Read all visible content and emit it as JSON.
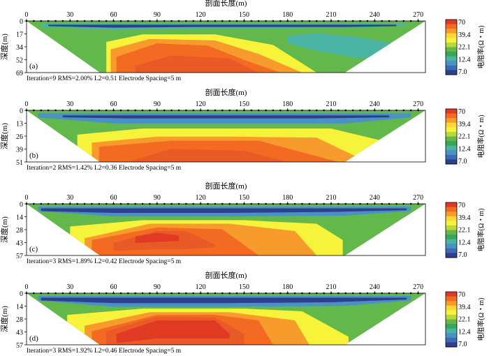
{
  "chart_data": [
    {
      "type": "heatmap",
      "label": "(a)",
      "xlabel": "剖面长度(m)",
      "ylabel": "深度(m)",
      "x_ticks": [
        0,
        30,
        60,
        90,
        120,
        150,
        180,
        210,
        240,
        270
      ],
      "xlim": [
        0,
        275
      ],
      "y_ticks": [
        "0",
        "17",
        "34",
        "52",
        "69"
      ],
      "ylim": [
        0,
        69
      ],
      "stats": "Iteration=9  RMS=2.00%  L2=0.51  Electrode Spacing=5 m",
      "layers": [
        {
          "level": "22.1",
          "x": [
            0,
            12,
            40,
            80,
            140,
            200,
            250,
            275
          ],
          "ytop": [
            0,
            0,
            0,
            0,
            0,
            0,
            0,
            0
          ],
          "ybot": [
            5,
            25,
            69,
            69,
            69,
            69,
            25,
            5
          ]
        },
        {
          "level": "12.4",
          "x": [
            10,
            60,
            120,
            180,
            240,
            262
          ],
          "ytop": [
            4,
            3,
            3,
            3,
            3,
            4
          ],
          "ybot": [
            8,
            12,
            10,
            10,
            8,
            6
          ]
        },
        {
          "level": "7.0",
          "x": [
            15,
            60,
            120,
            180,
            220,
            255
          ],
          "ytop": [
            5,
            5,
            5,
            5,
            5,
            5
          ],
          "ybot": [
            7,
            9,
            8,
            8,
            8,
            7
          ]
        },
        {
          "level": "12.4",
          "x": [
            180,
            200,
            230,
            252
          ],
          "ytop": [
            20,
            16,
            22,
            30
          ],
          "ybot": [
            30,
            40,
            50,
            44
          ]
        },
        {
          "level": "26.5",
          "x": [
            55,
            80,
            130,
            170,
            200
          ],
          "ytop": [
            28,
            18,
            18,
            32,
            69
          ],
          "ybot": [
            69,
            69,
            69,
            69,
            69
          ]
        },
        {
          "level": "39.4",
          "x": [
            58,
            85,
            130,
            160,
            190
          ],
          "ytop": [
            38,
            24,
            26,
            44,
            69
          ],
          "ybot": [
            69,
            69,
            69,
            69,
            69
          ]
        },
        {
          "level": "47.0",
          "x": [
            62,
            90,
            125,
            150,
            175
          ],
          "ytop": [
            48,
            30,
            33,
            52,
            69
          ],
          "ybot": [
            69,
            69,
            69,
            69,
            69
          ]
        },
        {
          "level": "56.0",
          "x": [
            75,
            100,
            140,
            160
          ],
          "ytop": [
            60,
            46,
            50,
            69
          ],
          "ybot": [
            69,
            69,
            69,
            69
          ]
        }
      ]
    },
    {
      "type": "heatmap",
      "label": "(b)",
      "xlabel": "剖面长度(m)",
      "ylabel": "深度(m)",
      "x_ticks": [
        0,
        30,
        60,
        90,
        120,
        150,
        180,
        210,
        240,
        270
      ],
      "xlim": [
        0,
        275
      ],
      "y_ticks": [
        "0",
        "13",
        "26",
        "39",
        "51"
      ],
      "ylim": [
        0,
        51
      ],
      "stats": "Iteration=2  RMS=1.42%  L2=0.36  Electrode Spacing=5 m",
      "layers": [
        {
          "level": "22.1",
          "x": [
            0,
            12,
            40,
            80,
            140,
            200,
            250,
            275
          ],
          "ytop": [
            0,
            0,
            0,
            0,
            0,
            0,
            0,
            0
          ],
          "ybot": [
            5,
            20,
            51,
            51,
            51,
            51,
            20,
            5
          ]
        },
        {
          "level": "15.0",
          "x": [
            8,
            60,
            140,
            220,
            265
          ],
          "ytop": [
            3,
            3,
            3,
            3,
            3
          ],
          "ybot": [
            7,
            13,
            13,
            13,
            7
          ]
        },
        {
          "level": "7.0",
          "x": [
            25,
            70,
            140,
            200,
            250
          ],
          "ytop": [
            5,
            5,
            5,
            5,
            5
          ],
          "ybot": [
            7,
            8,
            8,
            8,
            7
          ]
        },
        {
          "level": "26.5",
          "x": [
            35,
            80,
            140,
            210,
            245
          ],
          "ytop": [
            24,
            18,
            18,
            18,
            30
          ],
          "ybot": [
            51,
            51,
            51,
            51,
            51
          ]
        },
        {
          "level": "39.4",
          "x": [
            45,
            90,
            140,
            200,
            235
          ],
          "ytop": [
            32,
            26,
            26,
            27,
            51
          ],
          "ybot": [
            51,
            51,
            51,
            51,
            51
          ]
        },
        {
          "level": "47.0",
          "x": [
            50,
            100,
            160,
            215
          ],
          "ytop": [
            36,
            30,
            30,
            51
          ],
          "ybot": [
            51,
            51,
            51,
            51
          ]
        },
        {
          "level": "56.0",
          "x": [
            70,
            100,
            150,
            180
          ],
          "ytop": [
            51,
            38,
            40,
            51
          ],
          "ybot": [
            51,
            51,
            51,
            51
          ]
        }
      ]
    },
    {
      "type": "heatmap",
      "label": "(c)",
      "xlabel": "剖面长度(m)",
      "ylabel": "深度(m)",
      "x_ticks": [
        0,
        30,
        60,
        90,
        120,
        150,
        180,
        210,
        240,
        270
      ],
      "xlim": [
        0,
        275
      ],
      "y_ticks": [
        "0",
        "14",
        "28",
        "43",
        "57"
      ],
      "ylim": [
        0,
        57
      ],
      "stats": "Iteration=3  RMS=1.89%  L2=0.42  Electrode Spacing=5 m",
      "layers": [
        {
          "level": "22.1",
          "x": [
            0,
            12,
            40,
            80,
            140,
            200,
            250,
            275
          ],
          "ytop": [
            0,
            0,
            0,
            0,
            0,
            0,
            0,
            0
          ],
          "ybot": [
            5,
            22,
            57,
            57,
            57,
            57,
            22,
            5
          ]
        },
        {
          "level": "15.0",
          "x": [
            8,
            60,
            140,
            220,
            265
          ],
          "ytop": [
            3,
            3,
            3,
            3,
            3
          ],
          "ybot": [
            8,
            14,
            14,
            13,
            8
          ]
        },
        {
          "level": "7.0",
          "x": [
            10,
            60,
            140,
            210,
            262
          ],
          "ytop": [
            5,
            5,
            5,
            5,
            5
          ],
          "ybot": [
            8,
            10,
            10,
            9,
            7
          ]
        },
        {
          "level": "26.5",
          "x": [
            30,
            80,
            150,
            200,
            218
          ],
          "ytop": [
            25,
            18,
            18,
            22,
            40
          ],
          "ybot": [
            57,
            57,
            57,
            57,
            57
          ]
        },
        {
          "level": "39.4",
          "x": [
            40,
            85,
            140,
            185,
            200
          ],
          "ytop": [
            38,
            22,
            22,
            30,
            57
          ],
          "ybot": [
            57,
            57,
            57,
            57,
            57
          ]
        },
        {
          "level": "47.0",
          "x": [
            45,
            90,
            135,
            160
          ],
          "ytop": [
            40,
            26,
            28,
            57
          ],
          "ybot": [
            57,
            57,
            57,
            57
          ]
        },
        {
          "level": "56.0",
          "x": [
            60,
            90,
            110,
            130
          ],
          "ytop": [
            43,
            30,
            30,
            45
          ],
          "ybot": [
            52,
            50,
            50,
            48
          ]
        },
        {
          "level": "64.0",
          "x": [
            75,
            90,
            105
          ],
          "ytop": [
            36,
            32,
            35
          ],
          "ybot": [
            43,
            42,
            41
          ]
        }
      ]
    },
    {
      "type": "heatmap",
      "label": "(d)",
      "xlabel": "剖面长度(m)",
      "ylabel": "深度(m)",
      "x_ticks": [
        0,
        30,
        60,
        90,
        120,
        150,
        180,
        210,
        240,
        270
      ],
      "xlim": [
        0,
        275
      ],
      "y_ticks": [
        "0",
        "14",
        "28",
        "43",
        "57"
      ],
      "ylim": [
        0,
        57
      ],
      "stats": "Iteration=3  RMS=1.92%  L2=0.46  Electrode Spacing=5 m",
      "layers": [
        {
          "level": "22.1",
          "x": [
            0,
            12,
            40,
            80,
            140,
            200,
            250,
            275
          ],
          "ytop": [
            0,
            0,
            0,
            0,
            0,
            0,
            0,
            0
          ],
          "ybot": [
            5,
            22,
            57,
            57,
            57,
            57,
            22,
            5
          ]
        },
        {
          "level": "15.0",
          "x": [
            8,
            60,
            140,
            220,
            265
          ],
          "ytop": [
            3,
            3,
            3,
            3,
            3
          ],
          "ybot": [
            8,
            15,
            15,
            14,
            8
          ]
        },
        {
          "level": "7.0",
          "x": [
            10,
            60,
            140,
            210,
            262
          ],
          "ytop": [
            5,
            5,
            5,
            5,
            5
          ],
          "ybot": [
            8,
            11,
            11,
            10,
            7
          ]
        },
        {
          "level": "26.5",
          "x": [
            28,
            80,
            150,
            190,
            222
          ],
          "ytop": [
            24,
            17,
            17,
            20,
            48
          ],
          "ybot": [
            57,
            57,
            57,
            57,
            57
          ]
        },
        {
          "level": "39.4",
          "x": [
            40,
            85,
            140,
            185,
            195
          ],
          "ytop": [
            36,
            21,
            21,
            30,
            57
          ],
          "ybot": [
            57,
            57,
            57,
            57,
            57
          ]
        },
        {
          "level": "47.0",
          "x": [
            45,
            90,
            130,
            160,
            170
          ],
          "ytop": [
            42,
            24,
            24,
            30,
            57
          ],
          "ybot": [
            57,
            57,
            57,
            57,
            57
          ]
        },
        {
          "level": "56.0",
          "x": [
            55,
            90,
            130,
            150
          ],
          "ytop": [
            42,
            26,
            27,
            45
          ],
          "ybot": [
            57,
            57,
            57,
            57
          ]
        },
        {
          "level": "64.0",
          "x": [
            62,
            90,
            130,
            140
          ],
          "ytop": [
            45,
            30,
            30,
            45
          ],
          "ybot": [
            55,
            50,
            50,
            50
          ]
        }
      ]
    }
  ],
  "colorbar": {
    "label": "电阻率(Ω・m)",
    "tick_labels": [
      "70",
      "39.4",
      "22.1",
      "12.4",
      "7.0"
    ],
    "colors": [
      "#e03a24",
      "#f36b22",
      "#f89b2d",
      "#fdd835",
      "#f7f33a",
      "#b9d93b",
      "#63b84c",
      "#38a653",
      "#49b3a4",
      "#4a92c6",
      "#3a6bb4",
      "#2d3f8d"
    ]
  },
  "level_colors": {
    "7.0": "#2d3f8d",
    "12.4": "#49b3a4",
    "15.0": "#4a92c6",
    "22.1": "#63b84c",
    "26.5": "#f7f33a",
    "39.4": "#f89b2d",
    "47.0": "#f36b22",
    "56.0": "#e95a27",
    "64.0": "#e03a24"
  },
  "background_color": "#63b84c"
}
